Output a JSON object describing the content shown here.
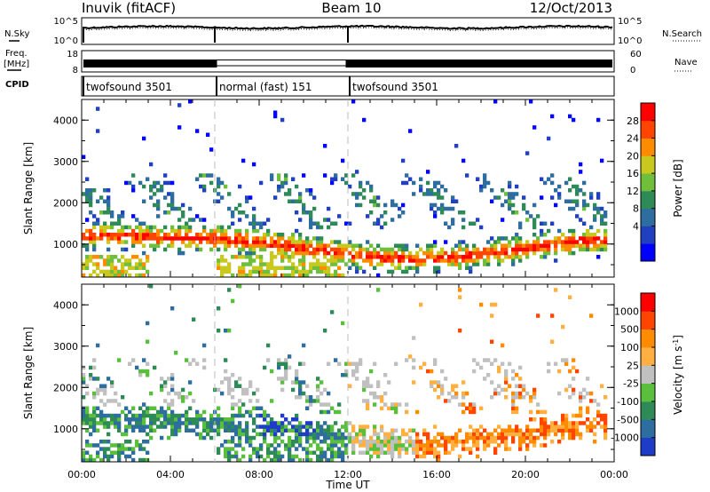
{
  "header": {
    "station": "Inuvik (fitACF)",
    "beam": "Beam 10",
    "date": "12/Oct/2013"
  },
  "panels": {
    "nsky_label": "N.Sky",
    "nsky_ticks": [
      "10^5",
      "10^0"
    ],
    "nsearch_ticks": [
      "10^5",
      "10^0"
    ],
    "nsearch_label": "N.Search",
    "freq_label": "Freq.",
    "freq_unit": "[MHz]",
    "freq_ticks": [
      "18",
      "8"
    ],
    "nave_ticks": [
      "60",
      "0"
    ],
    "nave_label": "Nave",
    "cpid_label": "CPID"
  },
  "chart_data": [
    {
      "type": "table",
      "name": "CPID",
      "segments": [
        {
          "label": "twofsound 3501",
          "start_hr": 0,
          "end_hr": 6
        },
        {
          "label": "normal (fast) 151",
          "start_hr": 6,
          "end_hr": 12
        },
        {
          "label": "twofsound 3501",
          "start_hr": 12,
          "end_hr": 24
        }
      ]
    },
    {
      "type": "heatmap",
      "title": "Power",
      "ylabel": "Slant Range [km]",
      "xlim": [
        0,
        24
      ],
      "ylim": [
        200,
        4500
      ],
      "yticks": [
        "1000",
        "2000",
        "3000",
        "4000"
      ],
      "colorbar": {
        "label": "Power [dB]",
        "ticks": [
          "28",
          "24",
          "20",
          "16",
          "12",
          "8",
          "4"
        ],
        "colors": [
          "#0000ff",
          "#2140c0",
          "#2e6da0",
          "#2e8b57",
          "#6fbf3c",
          "#c8c81e",
          "#ff8c00",
          "#ff4500",
          "#ff0000"
        ]
      }
    },
    {
      "type": "heatmap",
      "title": "Velocity",
      "ylabel": "Slant Range [km]",
      "xlabel": "Time UT",
      "xlim": [
        0,
        24
      ],
      "ylim": [
        200,
        4500
      ],
      "xticks": [
        "00:00",
        "04:00",
        "08:00",
        "12:00",
        "16:00",
        "20:00",
        "00:00"
      ],
      "yticks": [
        "1000",
        "2000",
        "3000",
        "4000"
      ],
      "colorbar": {
        "label": "Velocity [m s",
        "label_sup": "-1",
        "label_end": "]",
        "ticks": [
          "1000",
          "500",
          "100",
          "25",
          "-25",
          "-100",
          "-500",
          "-1000"
        ],
        "colors": [
          "#1e3cc8",
          "#2e6da0",
          "#2e8b57",
          "#5abf3c",
          "#c0c0c0",
          "#ffb040",
          "#ff8c00",
          "#ff4500",
          "#ff0000"
        ]
      }
    }
  ]
}
